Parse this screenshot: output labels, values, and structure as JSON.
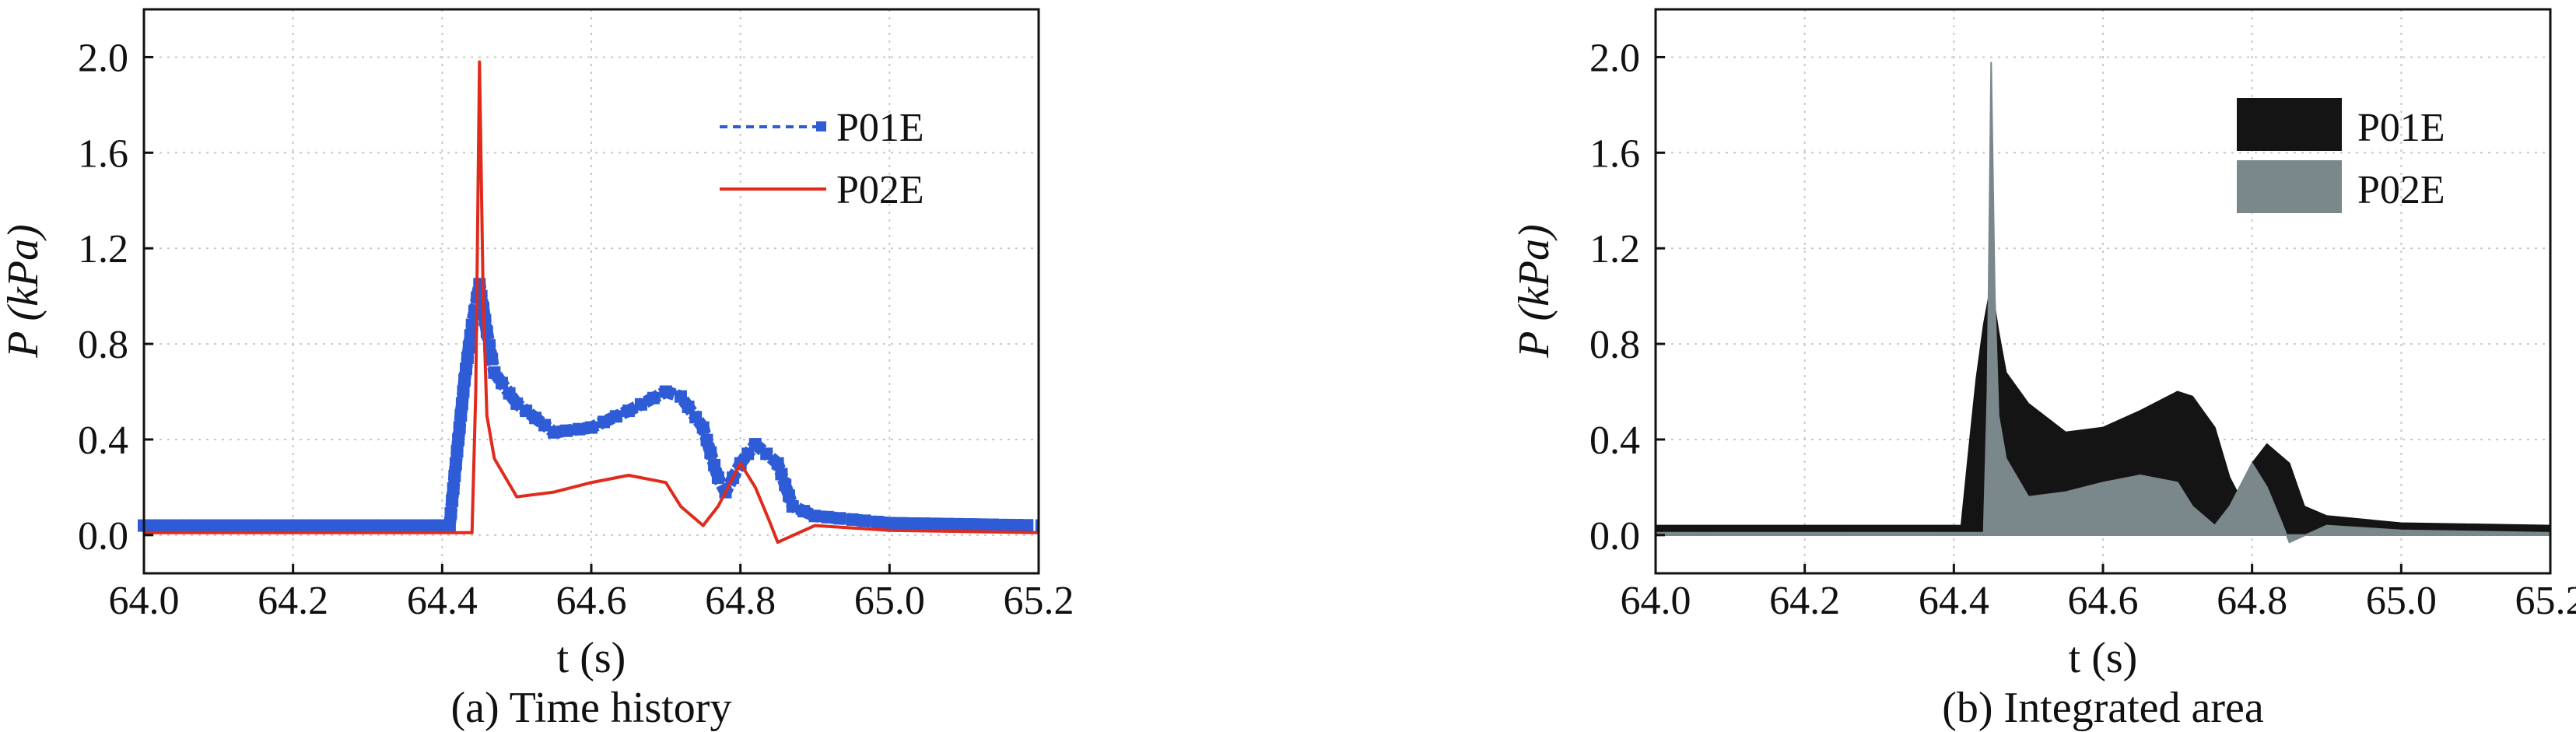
{
  "colors": {
    "p01e_line": "#2e5bd6",
    "p02e_line": "#e02a1c",
    "p01e_fill": "#141414",
    "p02e_fill": "#7a878b",
    "grid": "#c8c8c8"
  },
  "chart_data": [
    {
      "type": "line",
      "caption": "(a) Time history",
      "xlabel": "t (s)",
      "ylabel": "P (kPa)",
      "xlim": [
        64.0,
        65.2
      ],
      "ylim": [
        -0.16,
        2.2
      ],
      "xticks": [
        64.0,
        64.2,
        64.4,
        64.6,
        64.8,
        65.0,
        65.2
      ],
      "xtick_labels": [
        "64.0",
        "64.2",
        "64.4",
        "64.6",
        "64.8",
        "65.0",
        "65.2"
      ],
      "yticks": [
        0.0,
        0.4,
        0.8,
        1.2,
        1.6,
        2.0
      ],
      "ytick_labels": [
        "0.0",
        "0.4",
        "0.8",
        "1.2",
        "1.6",
        "2.0"
      ],
      "grid": true,
      "legend_position": "top-right",
      "series": [
        {
          "name": "P01E",
          "style": "dashed line with square markers",
          "x": [
            64.0,
            64.41,
            64.42,
            64.43,
            64.44,
            64.45,
            64.46,
            64.47,
            64.5,
            64.55,
            64.6,
            64.65,
            64.7,
            64.72,
            64.75,
            64.77,
            64.78,
            64.8,
            64.82,
            64.85,
            64.87,
            64.9,
            65.0,
            65.2
          ],
          "y": [
            0.04,
            0.04,
            0.35,
            0.65,
            0.88,
            1.05,
            0.85,
            0.68,
            0.55,
            0.43,
            0.45,
            0.52,
            0.6,
            0.58,
            0.45,
            0.24,
            0.18,
            0.3,
            0.38,
            0.3,
            0.12,
            0.08,
            0.05,
            0.04
          ]
        },
        {
          "name": "P02E",
          "style": "solid line",
          "x": [
            64.0,
            64.44,
            64.445,
            64.45,
            64.455,
            64.46,
            64.47,
            64.5,
            64.55,
            64.6,
            64.65,
            64.7,
            64.72,
            64.75,
            64.77,
            64.8,
            64.82,
            64.84,
            64.85,
            64.9,
            65.0,
            65.2
          ],
          "y": [
            0.01,
            0.01,
            0.6,
            1.98,
            1.0,
            0.5,
            0.32,
            0.16,
            0.18,
            0.22,
            0.25,
            0.22,
            0.12,
            0.04,
            0.12,
            0.3,
            0.2,
            0.05,
            -0.03,
            0.04,
            0.02,
            0.01
          ]
        }
      ]
    },
    {
      "type": "area",
      "caption": "(b) Integrated area",
      "xlabel": "t (s)",
      "ylabel": "P (kPa)",
      "xlim": [
        64.0,
        65.2
      ],
      "ylim": [
        -0.16,
        2.2
      ],
      "xticks": [
        64.0,
        64.2,
        64.4,
        64.6,
        64.8,
        65.0,
        65.2
      ],
      "xtick_labels": [
        "64.0",
        "64.2",
        "64.4",
        "64.6",
        "64.8",
        "65.0",
        "65.2"
      ],
      "yticks": [
        0.0,
        0.4,
        0.8,
        1.2,
        1.6,
        2.0
      ],
      "ytick_labels": [
        "0.0",
        "0.4",
        "0.8",
        "1.2",
        "1.6",
        "2.0"
      ],
      "grid": true,
      "legend_position": "top-right",
      "series": [
        {
          "name": "P01E",
          "x": [
            64.0,
            64.41,
            64.42,
            64.43,
            64.44,
            64.45,
            64.46,
            64.47,
            64.5,
            64.55,
            64.6,
            64.65,
            64.7,
            64.72,
            64.75,
            64.77,
            64.78,
            64.8,
            64.82,
            64.85,
            64.87,
            64.9,
            65.0,
            65.2
          ],
          "y": [
            0.04,
            0.04,
            0.35,
            0.65,
            0.88,
            1.05,
            0.85,
            0.68,
            0.55,
            0.43,
            0.45,
            0.52,
            0.6,
            0.58,
            0.45,
            0.24,
            0.18,
            0.3,
            0.38,
            0.3,
            0.12,
            0.08,
            0.05,
            0.04
          ]
        },
        {
          "name": "P02E",
          "x": [
            64.0,
            64.44,
            64.445,
            64.45,
            64.455,
            64.46,
            64.47,
            64.5,
            64.55,
            64.6,
            64.65,
            64.7,
            64.72,
            64.75,
            64.77,
            64.8,
            64.82,
            64.84,
            64.85,
            64.9,
            65.0,
            65.2
          ],
          "y": [
            0.01,
            0.01,
            0.6,
            1.98,
            1.0,
            0.5,
            0.32,
            0.16,
            0.18,
            0.22,
            0.25,
            0.22,
            0.12,
            0.04,
            0.12,
            0.3,
            0.2,
            0.05,
            -0.03,
            0.04,
            0.02,
            0.01
          ]
        }
      ]
    }
  ]
}
